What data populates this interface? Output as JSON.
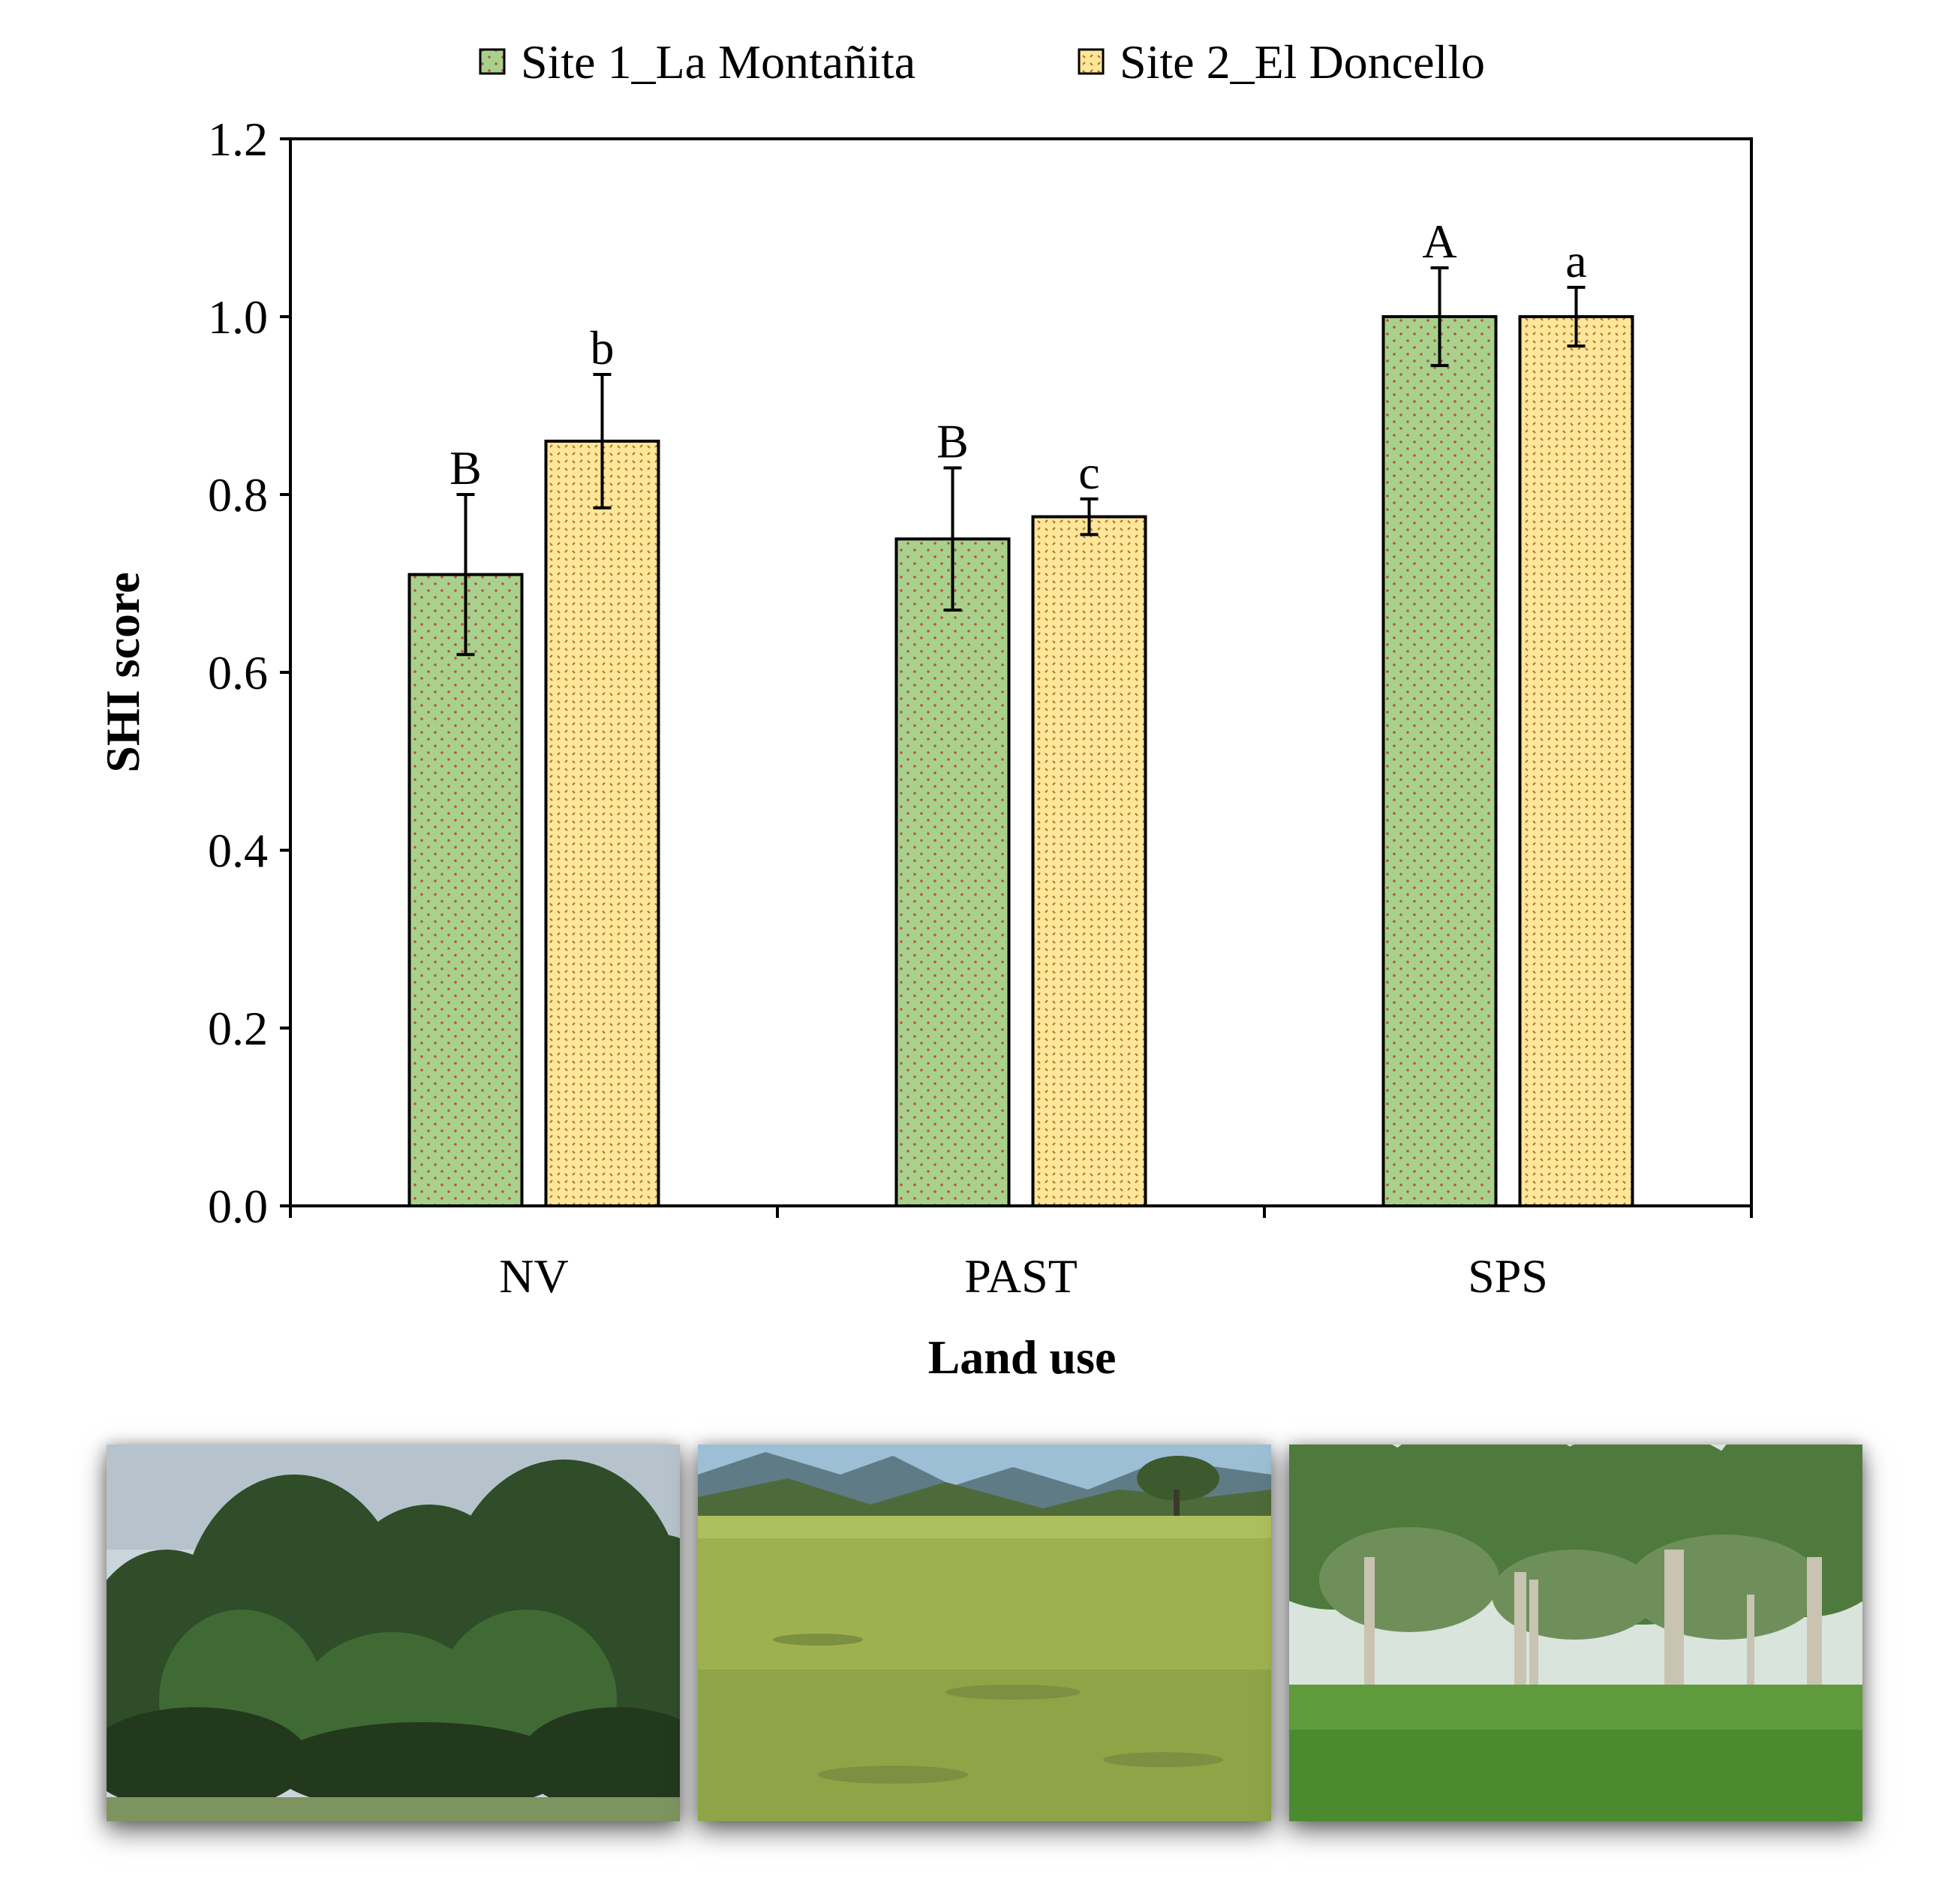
{
  "chart_data": {
    "type": "bar",
    "title": "",
    "xlabel": "Land use",
    "ylabel": "SHI score",
    "ylim": [
      0,
      1.2
    ],
    "yticks": [
      "0.0",
      "0.2",
      "0.4",
      "0.6",
      "0.8",
      "1.0",
      "1.2"
    ],
    "categories": [
      "NV",
      "PAST",
      "SPS"
    ],
    "legend_position": "top-center",
    "series": [
      {
        "name": "Site 1_La Montañita",
        "color": "#a9d18e",
        "dot_color": "#c0504d",
        "values": [
          0.71,
          0.75,
          1.0
        ],
        "errors": [
          0.09,
          0.08,
          0.055
        ],
        "letters": [
          "B",
          "B",
          "A"
        ]
      },
      {
        "name": "Site 2_El Doncello",
        "color": "#ffe699",
        "dot_color": "#b07a3a",
        "values": [
          0.86,
          0.775,
          1.0
        ],
        "errors": [
          0.075,
          0.02,
          0.033
        ],
        "letters": [
          "b",
          "c",
          "a"
        ]
      }
    ]
  },
  "photos": [
    {
      "subject": "native-vegetation-forest",
      "sky": "#c9d4dc",
      "ground": "#5d7a44",
      "canopy": "#2f4d28"
    },
    {
      "subject": "pasture-grassland",
      "sky": "#9cbfd6",
      "ground": "#9fb14f",
      "canopy": "#4f6a3a"
    },
    {
      "subject": "silvopastoral-system",
      "sky": "#d9e4dc",
      "ground": "#5f9b3c",
      "canopy": "#6f8f5a"
    }
  ]
}
